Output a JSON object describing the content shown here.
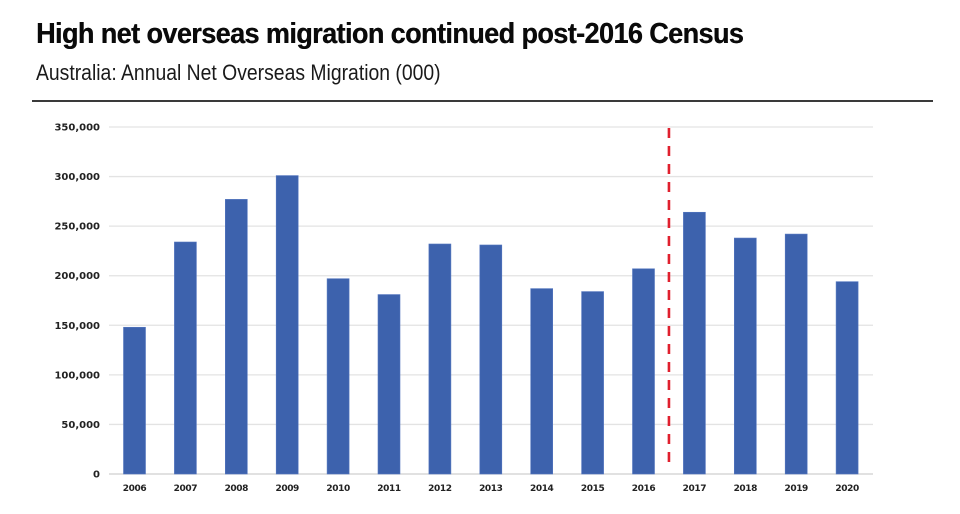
{
  "header": {
    "title": "High net overseas migration continued post-2016 Census",
    "subtitle": "Australia: Annual Net Overseas Migration (000)"
  },
  "chart_data": {
    "type": "bar",
    "title": "High net overseas migration continued post-2016 Census",
    "subtitle": "Australia: Annual Net Overseas Migration (000)",
    "xlabel": "",
    "ylabel": "",
    "categories": [
      "2006",
      "2007",
      "2008",
      "2009",
      "2010",
      "2011",
      "2012",
      "2013",
      "2014",
      "2015",
      "2016",
      "2017",
      "2018",
      "2019",
      "2020"
    ],
    "values": [
      148000,
      234000,
      277000,
      301000,
      197000,
      181000,
      232000,
      231000,
      187000,
      184000,
      207000,
      264000,
      238000,
      242000,
      194000
    ],
    "ylim": [
      0,
      350000
    ],
    "yticks": [
      0,
      50000,
      100000,
      150000,
      200000,
      250000,
      300000,
      350000
    ],
    "ytick_labels": [
      "0",
      "50,000",
      "100,000",
      "150,000",
      "200,000",
      "250,000",
      "300,000",
      "350,000"
    ],
    "grid": true,
    "legend": "none",
    "bar_color": "#3d62ad",
    "annotations": [
      {
        "type": "vertical-dashed-line",
        "position": "between 2016 and 2017",
        "color": "#e0202e",
        "meaning": "2016 Census"
      }
    ]
  }
}
